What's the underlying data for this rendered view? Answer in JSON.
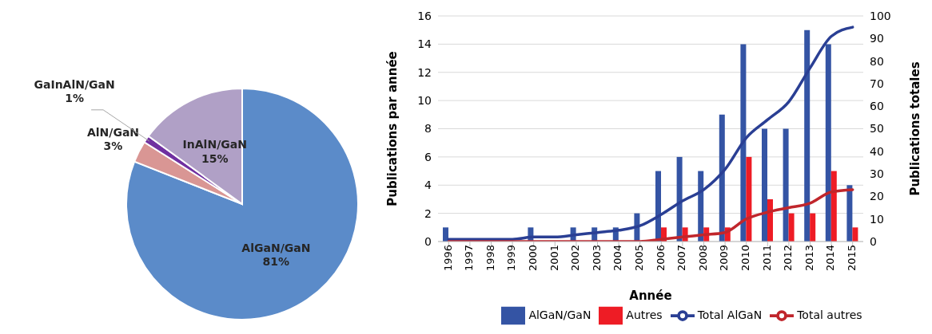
{
  "chart_data": [
    {
      "type": "pie",
      "categories": [
        "AlGaN/GaN",
        "AlN/GaN",
        "GaInAlN/GaN",
        "InAlN/GaN"
      ],
      "values": [
        81,
        3,
        1,
        15
      ],
      "colors": [
        "#5b8bc9",
        "#d99694",
        "#7030a0",
        "#b0a0c6"
      ],
      "value_labels": [
        "81%",
        "3%",
        "1%",
        "15%"
      ],
      "legend": false
    },
    {
      "type": "bar",
      "categories": [
        "1996",
        "1997",
        "1998",
        "1999",
        "2000",
        "2001",
        "2002",
        "2003",
        "2004",
        "2005",
        "2006",
        "2007",
        "2008",
        "2009",
        "2010",
        "2011",
        "2012",
        "2013",
        "2014",
        "2015"
      ],
      "xlabel": "Année",
      "ylabel": "Publications par année",
      "y2label": "Publications totales",
      "ylim": [
        0,
        16
      ],
      "yticks": [
        0,
        2,
        4,
        6,
        8,
        10,
        12,
        14,
        16
      ],
      "y2lim": [
        0,
        100
      ],
      "y2ticks": [
        0,
        10,
        20,
        30,
        40,
        50,
        60,
        70,
        80,
        90,
        100
      ],
      "grid": "y",
      "legend": "bottom",
      "marker": "none",
      "series": [
        {
          "name": "AlGaN/GaN",
          "color": "#3454a4",
          "values": [
            1,
            0,
            0,
            0,
            1,
            0,
            1,
            1,
            1,
            2,
            5,
            6,
            5,
            9,
            14,
            8,
            8,
            15,
            14,
            4
          ]
        },
        {
          "name": "Autres",
          "color": "#ee1c25",
          "values": [
            0,
            0,
            0,
            0,
            0,
            0,
            0,
            0,
            0,
            0,
            1,
            1,
            1,
            1,
            6,
            3,
            2,
            2,
            5,
            1
          ]
        },
        {
          "name": "Total AlGaN",
          "type": "line",
          "axis": "y2",
          "color": "#2a3f94",
          "values": [
            1,
            1,
            1,
            1,
            2,
            2,
            3,
            4,
            5,
            7,
            12,
            18,
            23,
            32,
            46,
            54,
            62,
            77,
            91,
            95
          ]
        },
        {
          "name": "Total autres",
          "type": "line",
          "axis": "y2",
          "color": "#c0262c",
          "values": [
            0,
            0,
            0,
            0,
            0,
            0,
            0,
            0,
            0,
            0,
            1,
            2,
            3,
            4,
            10,
            13,
            15,
            17,
            22,
            23
          ]
        }
      ]
    }
  ]
}
